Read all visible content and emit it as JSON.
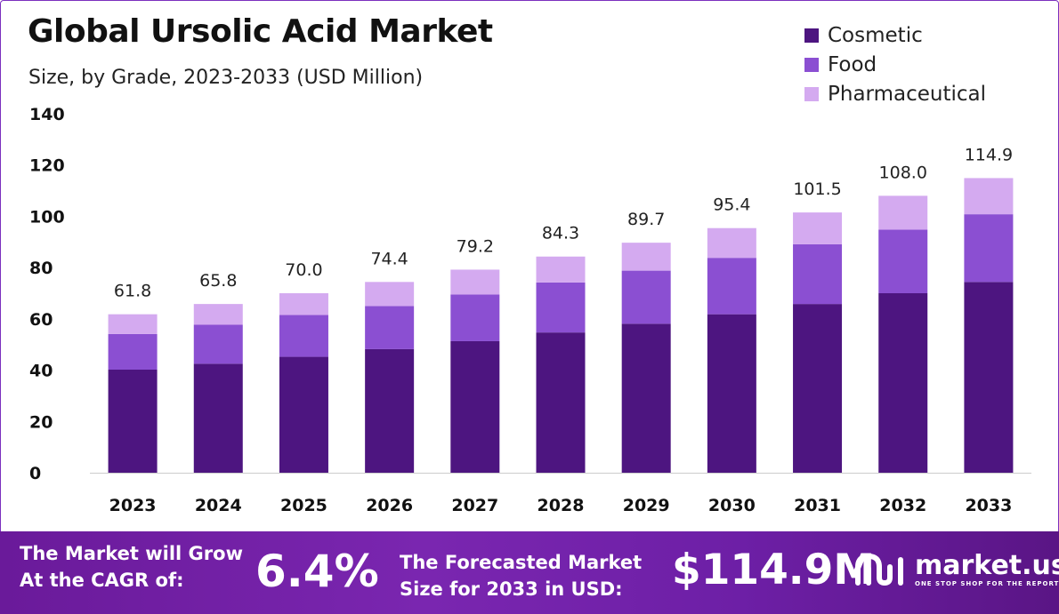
{
  "header": {
    "title": "Global Ursolic Acid Market",
    "subtitle": "Size, by Grade, 2023-2033 (USD Million)"
  },
  "colors": {
    "cosmetic": "#4d1580",
    "food": "#8b4fd2",
    "pharmaceutical": "#d4aaf0",
    "footer": "#6d1fa6"
  },
  "chart_data": {
    "type": "bar",
    "stacked": true,
    "categories": [
      "2023",
      "2024",
      "2025",
      "2026",
      "2027",
      "2028",
      "2029",
      "2030",
      "2031",
      "2032",
      "2033"
    ],
    "series": [
      {
        "name": "Cosmetic",
        "values": [
          40.2,
          42.5,
          45.2,
          48.2,
          51.3,
          54.7,
          58.1,
          61.8,
          65.8,
          70.0,
          74.4
        ]
      },
      {
        "name": "Food",
        "values": [
          13.9,
          15.2,
          16.3,
          16.8,
          18.2,
          19.5,
          20.7,
          22.0,
          23.3,
          24.8,
          26.4
        ]
      },
      {
        "name": "Pharmaceutical",
        "values": [
          7.7,
          8.1,
          8.5,
          9.4,
          9.7,
          10.1,
          10.9,
          11.6,
          12.4,
          13.2,
          14.1
        ]
      }
    ],
    "totals": [
      "61.8",
      "65.8",
      "70.0",
      "74.4",
      "79.2",
      "84.3",
      "89.7",
      "95.4",
      "101.5",
      "108.0",
      "114.9"
    ],
    "yticks": [
      "0",
      "20",
      "40",
      "60",
      "80",
      "100",
      "120",
      "140"
    ],
    "ylim": [
      0,
      140
    ],
    "legend_position": "top-right",
    "grid": false
  },
  "footer": {
    "cagr_line1": "The Market will Grow",
    "cagr_line2": "At the CAGR of:",
    "cagr_value": "6.4%",
    "forecast_line1": "The Forecasted Market",
    "forecast_line2": "Size for 2033 in USD:",
    "forecast_value": "$114.9M",
    "brand_name": "market.us",
    "brand_tagline": "ONE STOP SHOP FOR THE REPORTS",
    "brand_icon": "market-us-logo-icon"
  }
}
